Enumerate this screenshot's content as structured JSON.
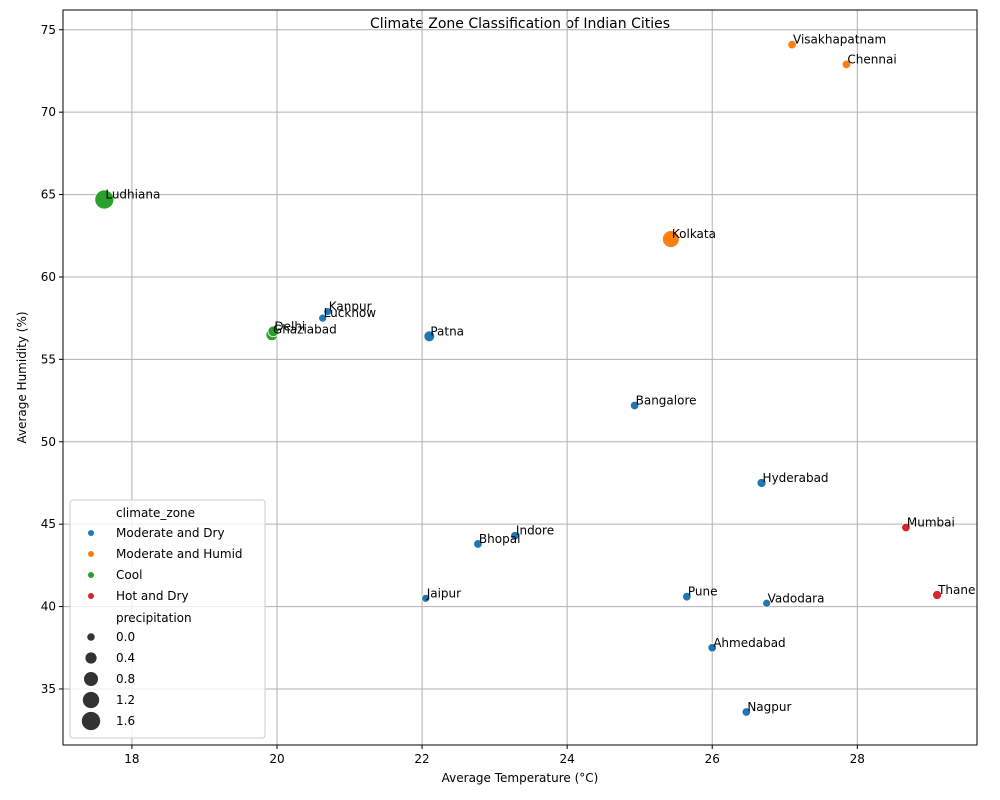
{
  "chart_data": {
    "type": "scatter",
    "title": "Climate Zone Classification of Indian Cities",
    "xlabel": "Average Temperature (°C)",
    "ylabel": "Average Humidity (%)",
    "xlim": [
      17.05,
      29.65
    ],
    "ylim": [
      31.6,
      76.2
    ],
    "xticks": [
      18,
      20,
      22,
      24,
      26,
      28
    ],
    "yticks": [
      35,
      40,
      45,
      50,
      55,
      60,
      65,
      70,
      75
    ],
    "grid": true,
    "legend_position": "bottom-left",
    "legend_hue_title": "climate_zone",
    "legend_size_title": "precipitation",
    "hue_categories": [
      {
        "name": "Moderate and Dry",
        "color": "#1f77b4"
      },
      {
        "name": "Moderate and Humid",
        "color": "#ff7f0e"
      },
      {
        "name": "Cool",
        "color": "#2ca02c"
      },
      {
        "name": "Hot and Dry",
        "color": "#d62728"
      }
    ],
    "size_legend": [
      {
        "label": "0.0",
        "value": 0.0
      },
      {
        "label": "0.4",
        "value": 0.4
      },
      {
        "label": "0.8",
        "value": 0.8
      },
      {
        "label": "1.2",
        "value": 1.2
      },
      {
        "label": "1.6",
        "value": 1.6
      }
    ],
    "points": [
      {
        "city": "Visakhapatnam",
        "x": 27.1,
        "y": 74.1,
        "precipitation": 0.1,
        "zone": "Moderate and Humid"
      },
      {
        "city": "Chennai",
        "x": 27.85,
        "y": 72.9,
        "precipitation": 0.1,
        "zone": "Moderate and Humid"
      },
      {
        "city": "Ludhiana",
        "x": 17.62,
        "y": 64.7,
        "precipitation": 1.75,
        "zone": "Cool"
      },
      {
        "city": "Kolkata",
        "x": 25.43,
        "y": 62.3,
        "precipitation": 1.3,
        "zone": "Moderate and Humid"
      },
      {
        "city": "Kanpur",
        "x": 20.7,
        "y": 57.9,
        "precipitation": 0.05,
        "zone": "Moderate and Dry"
      },
      {
        "city": "Lucknow",
        "x": 20.63,
        "y": 57.5,
        "precipitation": 0.05,
        "zone": "Moderate and Dry"
      },
      {
        "city": "Delhi",
        "x": 19.95,
        "y": 56.7,
        "precipitation": 0.35,
        "zone": "Cool"
      },
      {
        "city": "Ghaziabad",
        "x": 19.93,
        "y": 56.5,
        "precipitation": 0.5,
        "zone": "Cool"
      },
      {
        "city": "Patna",
        "x": 22.1,
        "y": 56.4,
        "precipitation": 0.35,
        "zone": "Moderate and Dry"
      },
      {
        "city": "Bangalore",
        "x": 24.93,
        "y": 52.2,
        "precipitation": 0.1,
        "zone": "Moderate and Dry"
      },
      {
        "city": "Hyderabad",
        "x": 26.68,
        "y": 47.5,
        "precipitation": 0.15,
        "zone": "Moderate and Dry"
      },
      {
        "city": "Mumbai",
        "x": 28.67,
        "y": 44.8,
        "precipitation": 0.1,
        "zone": "Hot and Dry"
      },
      {
        "city": "Indore",
        "x": 23.28,
        "y": 44.3,
        "precipitation": 0.1,
        "zone": "Moderate and Dry"
      },
      {
        "city": "Bhopal",
        "x": 22.77,
        "y": 43.8,
        "precipitation": 0.1,
        "zone": "Moderate and Dry"
      },
      {
        "city": "Thane",
        "x": 29.1,
        "y": 40.7,
        "precipitation": 0.15,
        "zone": "Hot and Dry"
      },
      {
        "city": "Pune",
        "x": 25.65,
        "y": 40.6,
        "precipitation": 0.1,
        "zone": "Moderate and Dry"
      },
      {
        "city": "Jaipur",
        "x": 22.05,
        "y": 40.5,
        "precipitation": 0.05,
        "zone": "Moderate and Dry"
      },
      {
        "city": "Vadodara",
        "x": 26.75,
        "y": 40.2,
        "precipitation": 0.05,
        "zone": "Moderate and Dry"
      },
      {
        "city": "Ahmedabad",
        "x": 26.0,
        "y": 37.5,
        "precipitation": 0.1,
        "zone": "Moderate and Dry"
      },
      {
        "city": "Nagpur",
        "x": 26.47,
        "y": 33.6,
        "precipitation": 0.1,
        "zone": "Moderate and Dry"
      }
    ]
  }
}
